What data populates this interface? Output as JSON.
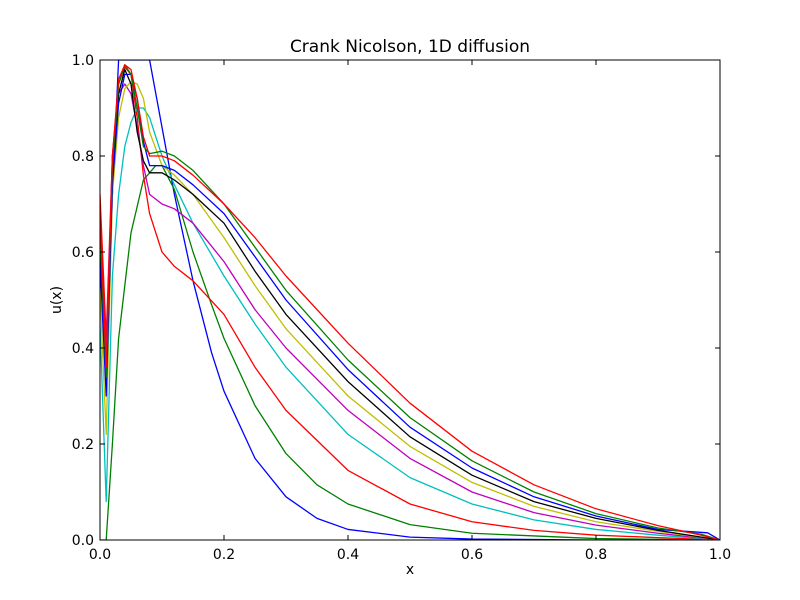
{
  "chart_data": {
    "type": "line",
    "title": "Crank Nicolson, 1D diffusion",
    "xlabel": "x",
    "ylabel": "u(x)",
    "xlim": [
      0.0,
      1.0
    ],
    "ylim": [
      0.0,
      1.0
    ],
    "xticks": [
      "0.0",
      "0.2",
      "0.4",
      "0.6",
      "0.8",
      "1.0"
    ],
    "yticks": [
      "0.0",
      "0.2",
      "0.4",
      "0.6",
      "0.8",
      "1.0"
    ],
    "grid": false,
    "legend": "none",
    "series": [
      {
        "color": "#0000ff",
        "x": [
          0.0,
          0.01,
          0.02,
          0.03,
          0.04,
          0.05,
          0.06,
          0.07,
          0.08,
          0.1,
          0.12,
          0.15,
          0.18,
          0.2,
          0.25,
          0.3,
          0.35,
          0.4,
          0.5,
          0.6,
          0.8,
          1.0
        ],
        "y": [
          0.7,
          0.35,
          0.72,
          1.0,
          1.0,
          1.0,
          1.0,
          1.0,
          1.0,
          0.86,
          0.72,
          0.54,
          0.39,
          0.31,
          0.17,
          0.09,
          0.045,
          0.022,
          0.006,
          0.002,
          0.0,
          0.0
        ]
      },
      {
        "color": "#008000",
        "x": [
          0.0,
          0.01,
          0.02,
          0.03,
          0.05,
          0.07,
          0.09,
          0.1,
          0.12,
          0.15,
          0.18,
          0.2,
          0.25,
          0.3,
          0.35,
          0.4,
          0.5,
          0.6,
          0.8,
          1.0
        ],
        "y": [
          0.0,
          0.0,
          0.2,
          0.42,
          0.64,
          0.75,
          0.78,
          0.78,
          0.73,
          0.6,
          0.49,
          0.42,
          0.28,
          0.18,
          0.115,
          0.075,
          0.032,
          0.014,
          0.003,
          0.0
        ]
      },
      {
        "color": "#ff0000",
        "x": [
          0.0,
          0.01,
          0.02,
          0.03,
          0.04,
          0.05,
          0.06,
          0.07,
          0.08,
          0.1,
          0.12,
          0.15,
          0.2,
          0.25,
          0.3,
          0.4,
          0.5,
          0.6,
          0.7,
          0.8,
          0.9,
          1.0
        ],
        "y": [
          0.72,
          0.42,
          0.8,
          0.95,
          0.985,
          0.97,
          0.88,
          0.76,
          0.68,
          0.6,
          0.57,
          0.54,
          0.47,
          0.36,
          0.27,
          0.145,
          0.075,
          0.038,
          0.02,
          0.01,
          0.005,
          0.0
        ]
      },
      {
        "color": "#00bfbf",
        "x": [
          0.0,
          0.01,
          0.02,
          0.03,
          0.04,
          0.05,
          0.06,
          0.07,
          0.08,
          0.1,
          0.12,
          0.15,
          0.2,
          0.25,
          0.3,
          0.4,
          0.5,
          0.6,
          0.7,
          0.8,
          0.9,
          1.0
        ],
        "y": [
          0.45,
          0.08,
          0.55,
          0.72,
          0.82,
          0.87,
          0.9,
          0.9,
          0.88,
          0.8,
          0.74,
          0.66,
          0.55,
          0.45,
          0.36,
          0.22,
          0.13,
          0.075,
          0.042,
          0.022,
          0.01,
          0.0
        ]
      },
      {
        "color": "#bf00bf",
        "x": [
          0.0,
          0.01,
          0.02,
          0.03,
          0.04,
          0.05,
          0.06,
          0.07,
          0.08,
          0.1,
          0.12,
          0.15,
          0.2,
          0.25,
          0.3,
          0.4,
          0.5,
          0.6,
          0.7,
          0.8,
          0.9,
          1.0
        ],
        "y": [
          0.66,
          0.38,
          0.8,
          0.93,
          0.95,
          0.93,
          0.86,
          0.78,
          0.72,
          0.7,
          0.69,
          0.66,
          0.58,
          0.48,
          0.4,
          0.27,
          0.17,
          0.1,
          0.057,
          0.031,
          0.014,
          0.0
        ]
      },
      {
        "color": "#bfbf00",
        "x": [
          0.0,
          0.01,
          0.02,
          0.03,
          0.04,
          0.05,
          0.06,
          0.07,
          0.08,
          0.1,
          0.12,
          0.15,
          0.2,
          0.25,
          0.3,
          0.4,
          0.5,
          0.6,
          0.7,
          0.8,
          0.9,
          1.0
        ],
        "y": [
          0.52,
          0.22,
          0.72,
          0.88,
          0.94,
          0.955,
          0.95,
          0.92,
          0.85,
          0.78,
          0.76,
          0.72,
          0.63,
          0.53,
          0.44,
          0.3,
          0.195,
          0.12,
          0.07,
          0.038,
          0.018,
          0.0
        ]
      },
      {
        "color": "#000000",
        "x": [
          0.0,
          0.01,
          0.02,
          0.03,
          0.04,
          0.05,
          0.06,
          0.07,
          0.08,
          0.1,
          0.12,
          0.15,
          0.2,
          0.25,
          0.3,
          0.4,
          0.5,
          0.6,
          0.7,
          0.8,
          0.9,
          1.0
        ],
        "y": [
          0.6,
          0.34,
          0.75,
          0.93,
          0.98,
          0.95,
          0.85,
          0.79,
          0.765,
          0.765,
          0.75,
          0.72,
          0.66,
          0.56,
          0.47,
          0.33,
          0.215,
          0.135,
          0.08,
          0.045,
          0.02,
          0.0
        ]
      },
      {
        "color": "#0000ff",
        "x": [
          0.0,
          0.01,
          0.02,
          0.03,
          0.04,
          0.05,
          0.06,
          0.07,
          0.08,
          0.1,
          0.12,
          0.15,
          0.2,
          0.25,
          0.3,
          0.4,
          0.5,
          0.6,
          0.7,
          0.8,
          0.9,
          0.98,
          1.0
        ],
        "y": [
          0.58,
          0.3,
          0.74,
          0.91,
          0.97,
          0.97,
          0.92,
          0.83,
          0.78,
          0.78,
          0.77,
          0.74,
          0.68,
          0.59,
          0.5,
          0.355,
          0.235,
          0.15,
          0.09,
          0.05,
          0.022,
          0.015,
          0.0
        ]
      },
      {
        "color": "#008000",
        "x": [
          0.0,
          0.01,
          0.02,
          0.03,
          0.04,
          0.05,
          0.06,
          0.07,
          0.08,
          0.1,
          0.12,
          0.15,
          0.2,
          0.25,
          0.3,
          0.4,
          0.5,
          0.6,
          0.7,
          0.8,
          0.9,
          0.97,
          1.0
        ],
        "y": [
          0.65,
          0.34,
          0.78,
          0.95,
          0.99,
          0.97,
          0.9,
          0.82,
          0.805,
          0.81,
          0.8,
          0.77,
          0.7,
          0.61,
          0.52,
          0.375,
          0.255,
          0.165,
          0.1,
          0.055,
          0.025,
          0.012,
          0.0
        ]
      },
      {
        "color": "#ff0000",
        "x": [
          0.0,
          0.01,
          0.02,
          0.03,
          0.04,
          0.05,
          0.06,
          0.07,
          0.08,
          0.1,
          0.12,
          0.15,
          0.2,
          0.25,
          0.3,
          0.4,
          0.5,
          0.6,
          0.7,
          0.8,
          0.9,
          0.97,
          1.0
        ],
        "y": [
          0.68,
          0.36,
          0.8,
          0.96,
          0.99,
          0.98,
          0.92,
          0.84,
          0.8,
          0.8,
          0.79,
          0.76,
          0.7,
          0.63,
          0.55,
          0.41,
          0.285,
          0.185,
          0.115,
          0.065,
          0.03,
          0.01,
          0.0
        ]
      }
    ]
  }
}
